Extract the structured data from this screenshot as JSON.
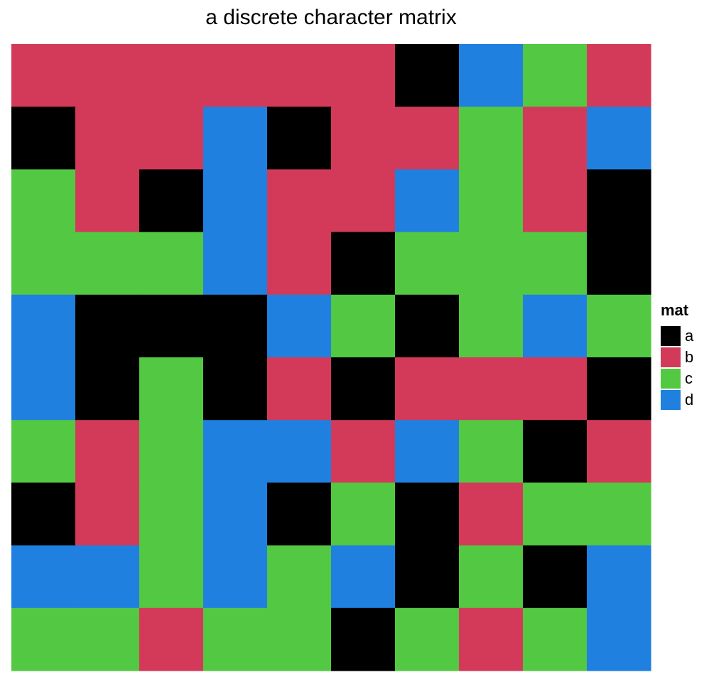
{
  "chart_data": {
    "type": "heatmap",
    "title": "a discrete character matrix",
    "xlabel": "",
    "ylabel": "",
    "legend": {
      "title": "mat",
      "position": "right",
      "levels": [
        "a",
        "b",
        "c",
        "d"
      ]
    },
    "colors": {
      "a": "#000000",
      "b": "#d33a59",
      "c": "#53c843",
      "d": "#1f80e0"
    },
    "rows": 10,
    "cols": 10,
    "matrix": [
      [
        "b",
        "b",
        "b",
        "b",
        "b",
        "b",
        "a",
        "d",
        "c",
        "b"
      ],
      [
        "a",
        "b",
        "b",
        "d",
        "a",
        "b",
        "b",
        "c",
        "b",
        "d"
      ],
      [
        "c",
        "b",
        "a",
        "d",
        "b",
        "b",
        "d",
        "c",
        "b",
        "a"
      ],
      [
        "c",
        "c",
        "c",
        "d",
        "b",
        "a",
        "c",
        "c",
        "c",
        "a"
      ],
      [
        "d",
        "a",
        "a",
        "a",
        "d",
        "c",
        "a",
        "c",
        "d",
        "c"
      ],
      [
        "d",
        "a",
        "c",
        "a",
        "b",
        "a",
        "b",
        "b",
        "b",
        "a"
      ],
      [
        "c",
        "b",
        "c",
        "d",
        "d",
        "b",
        "d",
        "c",
        "a",
        "b"
      ],
      [
        "a",
        "b",
        "c",
        "d",
        "a",
        "c",
        "a",
        "b",
        "c",
        "c"
      ],
      [
        "d",
        "d",
        "c",
        "d",
        "c",
        "d",
        "a",
        "c",
        "a",
        "d"
      ],
      [
        "c",
        "c",
        "b",
        "c",
        "c",
        "a",
        "c",
        "b",
        "c",
        "d"
      ]
    ]
  }
}
